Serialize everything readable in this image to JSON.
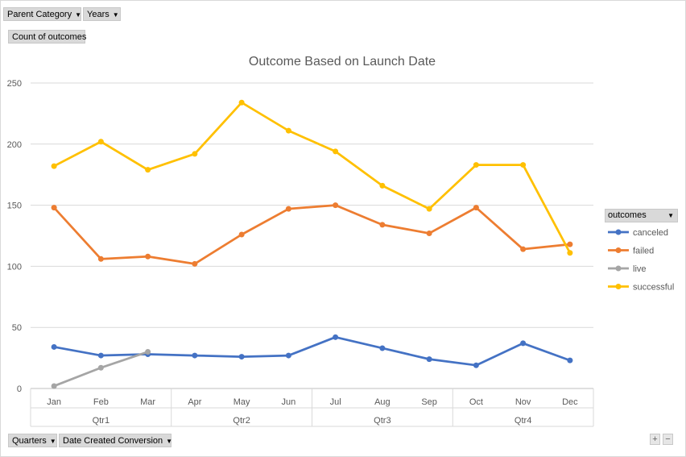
{
  "filters": {
    "parent_category": "Parent Category",
    "years": "Years",
    "value_field": "Count of outcomes",
    "quarters": "Quarters",
    "date_created": "Date Created Conversion",
    "legend_title": "outcomes",
    "zoom_in": "+",
    "zoom_out": "−"
  },
  "colors": {
    "canceled": "#4472c4",
    "failed": "#ed7d31",
    "live": "#a5a5a5",
    "successful": "#ffc000"
  },
  "chart_data": {
    "type": "line",
    "title": "Outcome Based on Launch Date",
    "xlabel": "",
    "ylabel": "",
    "ylim": [
      0,
      250
    ],
    "yticks": [
      0,
      50,
      100,
      150,
      200,
      250
    ],
    "grid": true,
    "legend_position": "right",
    "categories": [
      "Jan",
      "Feb",
      "Mar",
      "Apr",
      "May",
      "Jun",
      "Jul",
      "Aug",
      "Sep",
      "Oct",
      "Nov",
      "Dec"
    ],
    "groups": [
      {
        "label": "Qtr1",
        "span": 3
      },
      {
        "label": "Qtr2",
        "span": 3
      },
      {
        "label": "Qtr3",
        "span": 3
      },
      {
        "label": "Qtr4",
        "span": 3
      }
    ],
    "series": [
      {
        "name": "canceled",
        "values": [
          34,
          27,
          28,
          27,
          26,
          27,
          42,
          33,
          24,
          19,
          37,
          23
        ]
      },
      {
        "name": "failed",
        "values": [
          148,
          106,
          108,
          102,
          126,
          147,
          150,
          134,
          127,
          148,
          114,
          118
        ]
      },
      {
        "name": "live",
        "values": [
          2,
          17,
          30,
          null,
          null,
          null,
          null,
          null,
          null,
          null,
          null,
          null
        ]
      },
      {
        "name": "successful",
        "values": [
          182,
          202,
          179,
          192,
          234,
          211,
          194,
          166,
          147,
          183,
          183,
          111
        ]
      }
    ]
  }
}
